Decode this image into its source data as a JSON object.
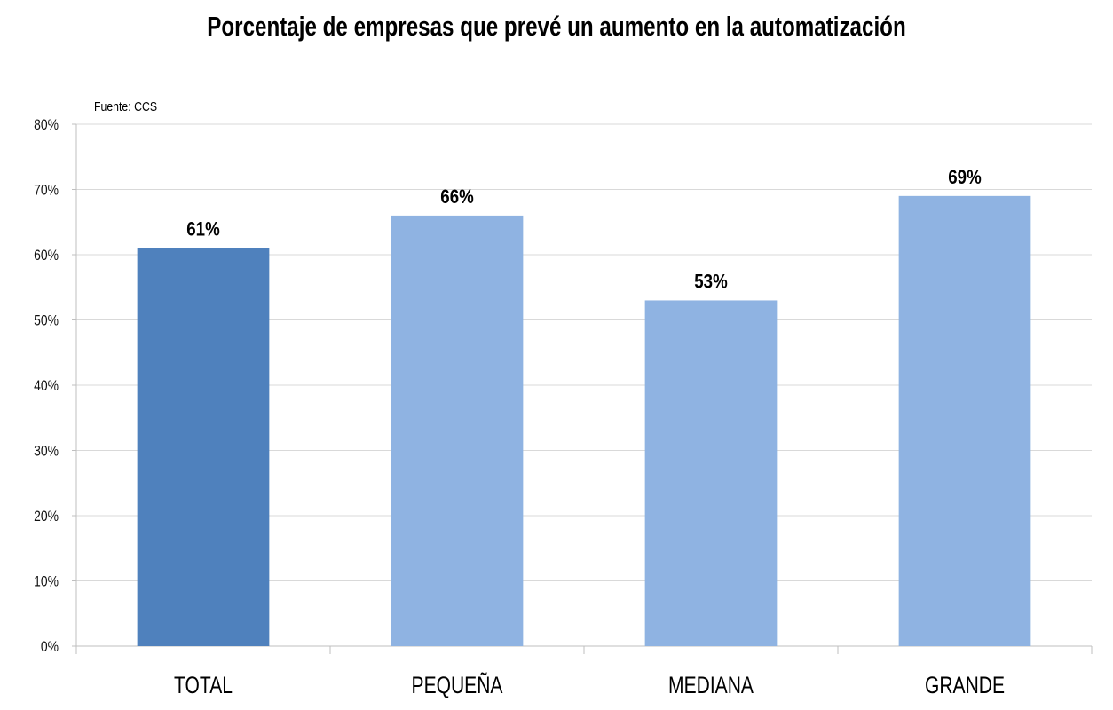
{
  "chart_data": {
    "type": "bar",
    "title": "Porcentaje de empresas que prevé un aumento en la automatización",
    "source": "Fuente: CCS",
    "categories": [
      "TOTAL",
      "PEQUEÑA",
      "MEDIANA",
      "GRANDE"
    ],
    "values": [
      61,
      66,
      53,
      69
    ],
    "value_labels": [
      "61%",
      "66%",
      "53%",
      "69%"
    ],
    "bar_colors": [
      "#4f81bd",
      "#8fb3e2",
      "#8fb3e2",
      "#8fb3e2"
    ],
    "ylim": [
      0,
      80
    ],
    "yticks": [
      0,
      10,
      20,
      30,
      40,
      50,
      60,
      70,
      80
    ],
    "ytick_labels": [
      "0%",
      "10%",
      "20%",
      "30%",
      "40%",
      "50%",
      "60%",
      "70%",
      "80%"
    ],
    "xlabel": "",
    "ylabel": "",
    "grid": true,
    "legend": "none"
  }
}
